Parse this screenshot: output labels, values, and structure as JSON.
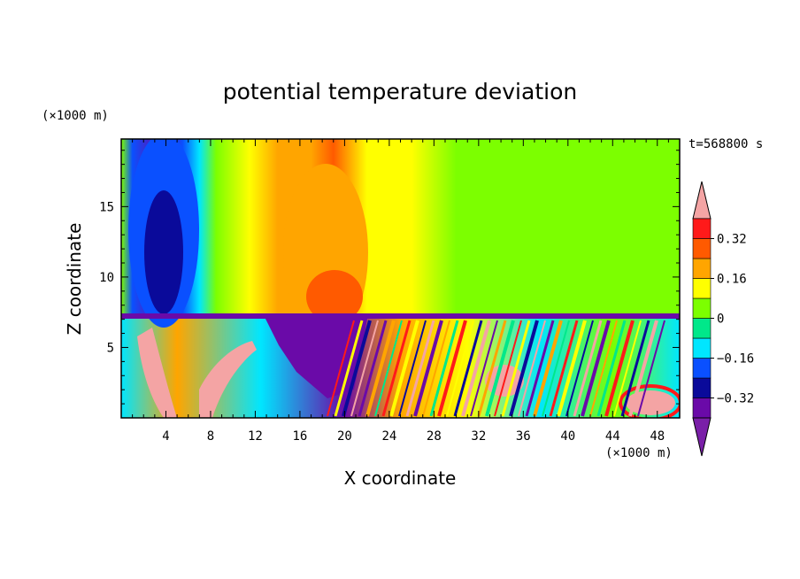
{
  "chart_data": {
    "type": "heatmap",
    "title": "potential temperature deviation",
    "xlabel": "X coordinate",
    "ylabel": "Z coordinate",
    "x_unit": "(×1000 m)",
    "y_unit": "(×1000 m)",
    "time_label": "t=568800 s",
    "xlim": [
      0,
      50
    ],
    "ylim": [
      0,
      19.8
    ],
    "x_ticks": [
      4,
      8,
      12,
      16,
      20,
      24,
      28,
      32,
      36,
      40,
      44,
      48
    ],
    "y_ticks": [
      5,
      10,
      15
    ],
    "colorbar": {
      "levels": [
        -0.4,
        -0.32,
        -0.24,
        -0.16,
        -0.08,
        0,
        0.08,
        0.16,
        0.24,
        0.32,
        0.4
      ],
      "tick_values": [
        0.32,
        0.16,
        0,
        -0.16,
        -0.32
      ],
      "tick_labels": [
        "0.32",
        "0.16",
        "0",
        "−0.16",
        "−0.32"
      ],
      "under_color": "#7a1fa8",
      "over_color": "#f4a4a4",
      "colors": [
        "#6a0aa8",
        "#0a0a9a",
        "#0a50ff",
        "#00e6ff",
        "#00e88a",
        "#7cff00",
        "#ffff00",
        "#ffa500",
        "#ff5a00",
        "#ff1a1a"
      ]
    },
    "upper_columns": [
      {
        "x": 0,
        "value": 0.04
      },
      {
        "x": 1,
        "value": -0.2
      },
      {
        "x": 3.5,
        "value": -0.35
      },
      {
        "x": 5.5,
        "value": -0.2
      },
      {
        "x": 7,
        "value": -0.12
      },
      {
        "x": 8.5,
        "value": 0.02
      },
      {
        "x": 11.5,
        "value": 0.1
      },
      {
        "x": 14,
        "value": 0.19
      },
      {
        "x": 17,
        "value": 0.23
      },
      {
        "x": 19,
        "value": 0.26
      },
      {
        "x": 22,
        "value": 0.15
      },
      {
        "x": 26,
        "value": 0.09
      },
      {
        "x": 30,
        "value": 0.05
      },
      {
        "x": 34,
        "value": 0.06
      },
      {
        "x": 38,
        "value": 0.05
      },
      {
        "x": 42,
        "value": 0.03
      },
      {
        "x": 46,
        "value": 0.04
      },
      {
        "x": 50,
        "value": 0.01
      }
    ]
  }
}
